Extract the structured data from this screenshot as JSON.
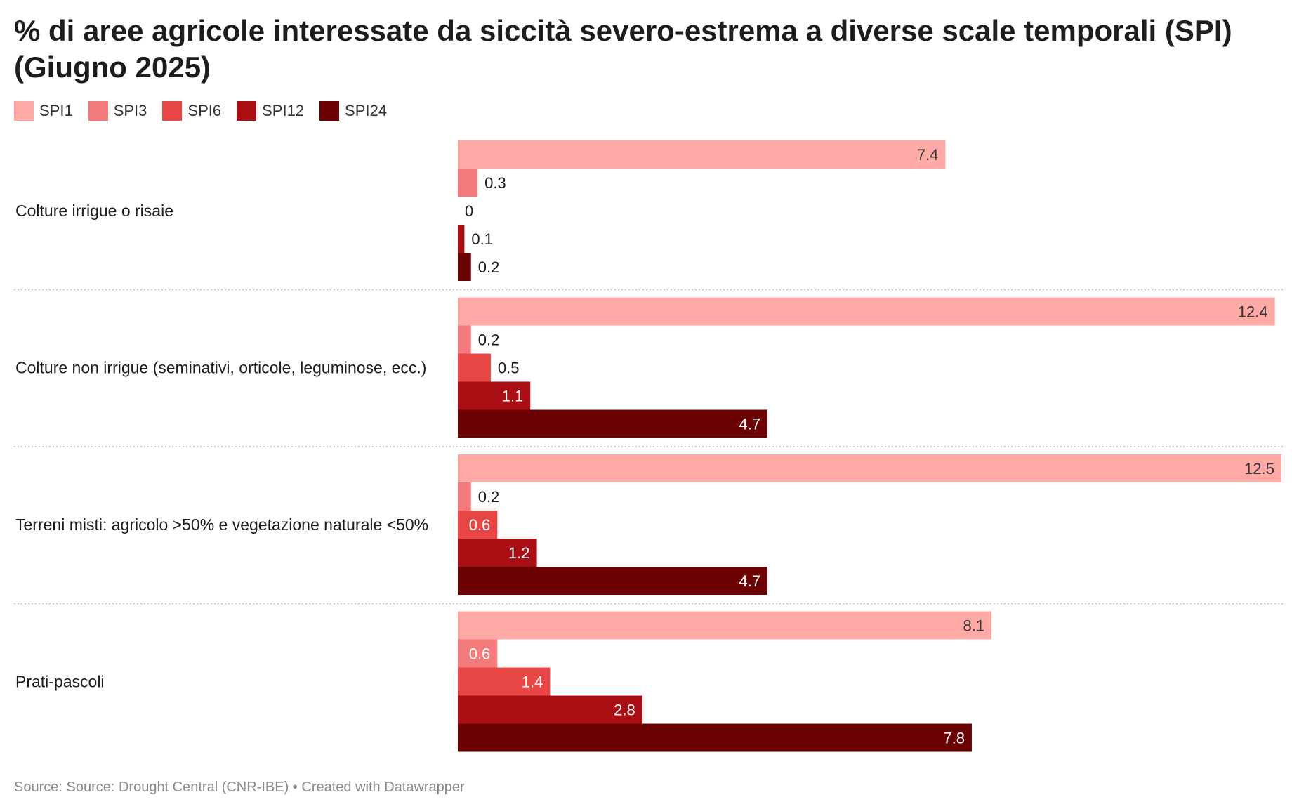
{
  "title": "% di aree agricole interessate da siccità severo-estrema a diverse scale temporali (SPI) (Giugno 2025)",
  "source": "Source: Source: Drought Central (CNR-IBE) • Created with Datawrapper",
  "colors": {
    "SPI1": "#ffaaa7",
    "SPI3": "#f47b7b",
    "SPI6": "#e84545",
    "SPI12": "#a80e12",
    "SPI24": "#6b0204"
  },
  "chart_data": {
    "type": "bar",
    "orientation": "horizontal",
    "title": "% di aree agricole interessate da siccità severo-estrema a diverse scale temporali (SPI) (Giugno 2025)",
    "categories": [
      "Colture irrigue o risaie",
      "Colture non irrigue (seminativi, orticole, leguminose, ecc.)",
      "Terreni misti: agricolo >50% e vegetazione naturale <50%",
      "Prati-pascoli"
    ],
    "series": [
      {
        "name": "SPI1",
        "values": [
          7.4,
          12.4,
          12.5,
          8.1
        ]
      },
      {
        "name": "SPI3",
        "values": [
          0.3,
          0.2,
          0.2,
          0.6
        ]
      },
      {
        "name": "SPI6",
        "values": [
          0,
          0.5,
          0.6,
          1.4
        ]
      },
      {
        "name": "SPI12",
        "values": [
          0.1,
          1.1,
          1.2,
          2.8
        ]
      },
      {
        "name": "SPI24",
        "values": [
          0.2,
          4.7,
          4.7,
          7.8
        ]
      }
    ],
    "xlim": [
      0,
      12.5
    ],
    "legend": "top-left",
    "grid": false
  }
}
